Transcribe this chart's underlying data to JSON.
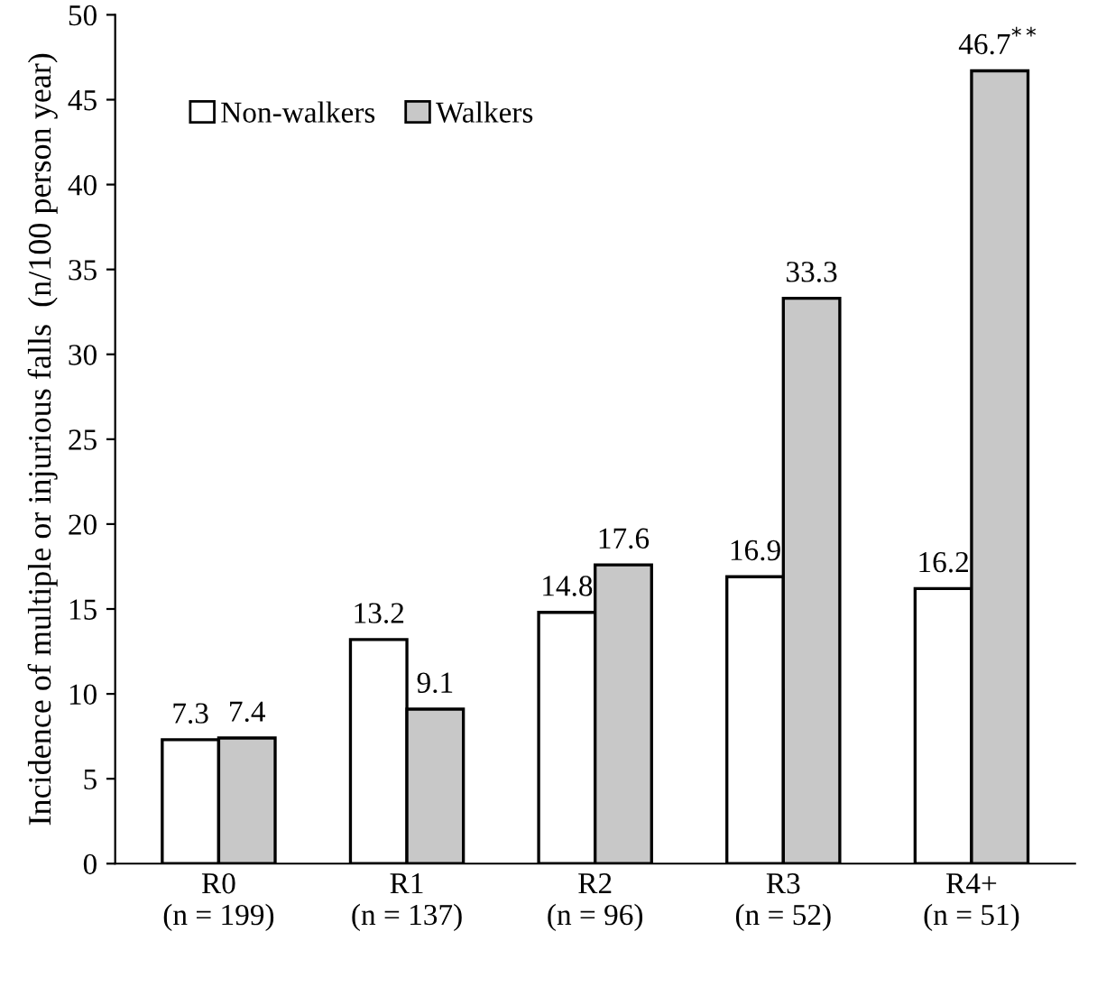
{
  "chart_data": {
    "type": "bar",
    "ylabel": "Incidence of multiple or injurious falls  (n/100 person year)",
    "categories": [
      "R0\n(n = 199)",
      "R1\n(n = 137)",
      "R2\n(n = 96)",
      "R3\n(n = 52)",
      "R4+\n(n = 51)"
    ],
    "series": [
      {
        "name": "Non-walkers",
        "color": "#ffffff",
        "values": [
          7.3,
          13.2,
          14.8,
          16.9,
          16.2
        ],
        "value_labels": [
          "7.3",
          "13.2",
          "14.8",
          "16.9",
          "16.2"
        ]
      },
      {
        "name": "Walkers",
        "color": "#c8c8c8",
        "values": [
          7.4,
          9.1,
          17.6,
          33.3,
          46.7
        ],
        "value_labels": [
          "7.4",
          "9.1",
          "17.6",
          "33.3",
          "46.7$^{**}$"
        ]
      }
    ],
    "ylim": [
      0,
      50
    ],
    "yticks": [
      0,
      5,
      10,
      15,
      20,
      25,
      30,
      35,
      40,
      45,
      50
    ],
    "grid": false,
    "legend": "top left"
  }
}
